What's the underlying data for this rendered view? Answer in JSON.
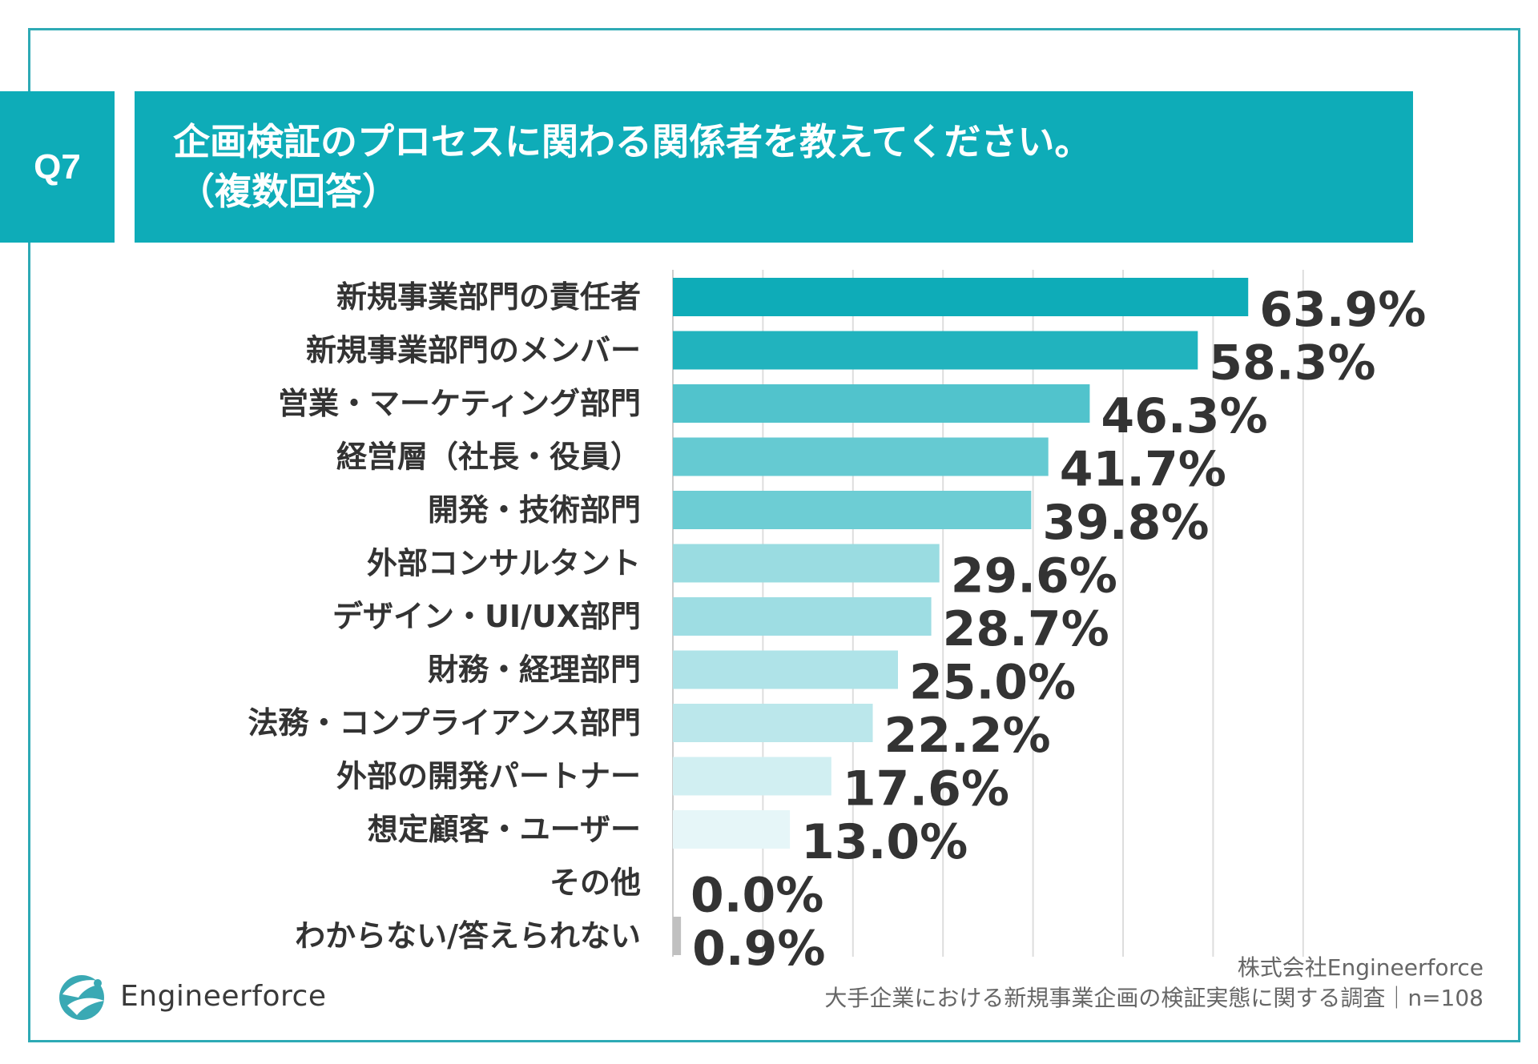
{
  "header": {
    "badge": "Q7",
    "title_line1": "企画検証のプロセスに関わる関係者を教えてください。",
    "title_line2": "（複数回答）"
  },
  "colors": {
    "accent": "#0eacb8",
    "frame": "#2eaab5",
    "gradient_dark": "#0eacb8",
    "gradient_light": "#e6f6f8",
    "small_bar": "#c0c0c0",
    "grid": "#dddddd"
  },
  "chart_data": {
    "type": "bar",
    "orientation": "horizontal",
    "categories": [
      "新規事業部門の責任者",
      "新規事業部門のメンバー",
      "営業・マーケティング部門",
      "経営層（社長・役員）",
      "開発・技術部門",
      "外部コンサルタント",
      "デザイン・UI/UX部門",
      "財務・経理部門",
      "法務・コンプライアンス部門",
      "外部の開発パートナー",
      "想定顧客・ユーザー",
      "その他",
      "わからない/答えられない"
    ],
    "values": [
      63.9,
      58.3,
      46.3,
      41.7,
      39.8,
      29.6,
      28.7,
      25.0,
      22.2,
      17.6,
      13.0,
      0.0,
      0.9
    ],
    "value_labels": [
      "63.9%",
      "58.3%",
      "46.3%",
      "41.7%",
      "39.8%",
      "29.6%",
      "28.7%",
      "25.0%",
      "22.2%",
      "17.6%",
      "13.0%",
      "0.0%",
      "0.9%"
    ],
    "xlim": [
      0,
      70
    ],
    "grid_step": 10,
    "grid": true,
    "unit": "%"
  },
  "footer": {
    "logo_text": "Engineerforce",
    "company": "株式会社Engineerforce",
    "survey": "大手企業における新規事業企画の検証実態に関する調査｜n=108"
  }
}
